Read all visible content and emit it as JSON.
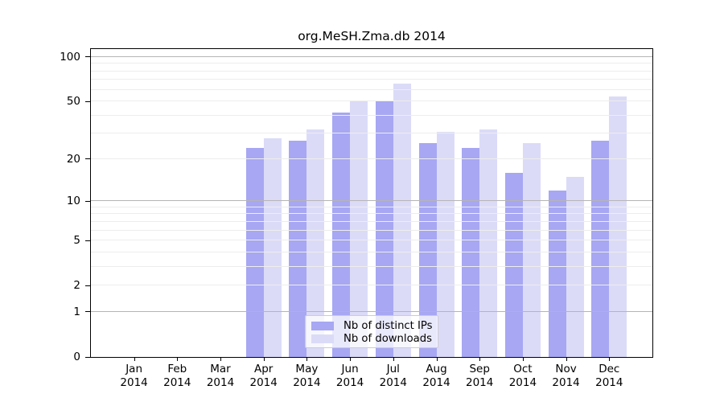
{
  "title": "org.MeSH.Zma.db 2014",
  "chart_data": {
    "type": "bar",
    "title": "org.MeSH.Zma.db 2014",
    "categories": [
      "Jan 2014",
      "Feb 2014",
      "Mar 2014",
      "Apr 2014",
      "May 2014",
      "Jun 2014",
      "Jul 2014",
      "Aug 2014",
      "Sep 2014",
      "Oct 2014",
      "Nov 2014",
      "Dec 2014"
    ],
    "series": [
      {
        "name": "Nb of distinct IPs",
        "color": "#a7a7f3",
        "values": [
          0,
          0,
          0,
          24,
          27,
          42,
          50,
          26,
          24,
          16,
          12,
          27
        ]
      },
      {
        "name": "Nb of downloads",
        "color": "#dbdbf8",
        "values": [
          0,
          0,
          0,
          28,
          32,
          51,
          66,
          31,
          32,
          26,
          15,
          54
        ]
      }
    ],
    "xlabel": "",
    "ylabel": "",
    "y_ticks": [
      0,
      1,
      2,
      5,
      10,
      20,
      50,
      100
    ],
    "y_scale": "log10(1+v)",
    "ylim": [
      0,
      113
    ],
    "grid": {
      "minor_values": [
        2,
        3,
        4,
        5,
        6,
        7,
        8,
        9,
        20,
        30,
        40,
        50,
        60,
        70,
        80,
        90
      ],
      "major_values": [
        1,
        10,
        100
      ],
      "minor_color": "#ededed",
      "major_color": "#b5b5b5",
      "grid_on_top_of_bars": true
    },
    "legend": {
      "position": "inside-bottom-center",
      "entries": [
        "Nb of distinct IPs",
        "Nb of downloads"
      ]
    }
  },
  "colors": {
    "background": "#ffffff",
    "axis": "#000000",
    "text": "#000000"
  }
}
